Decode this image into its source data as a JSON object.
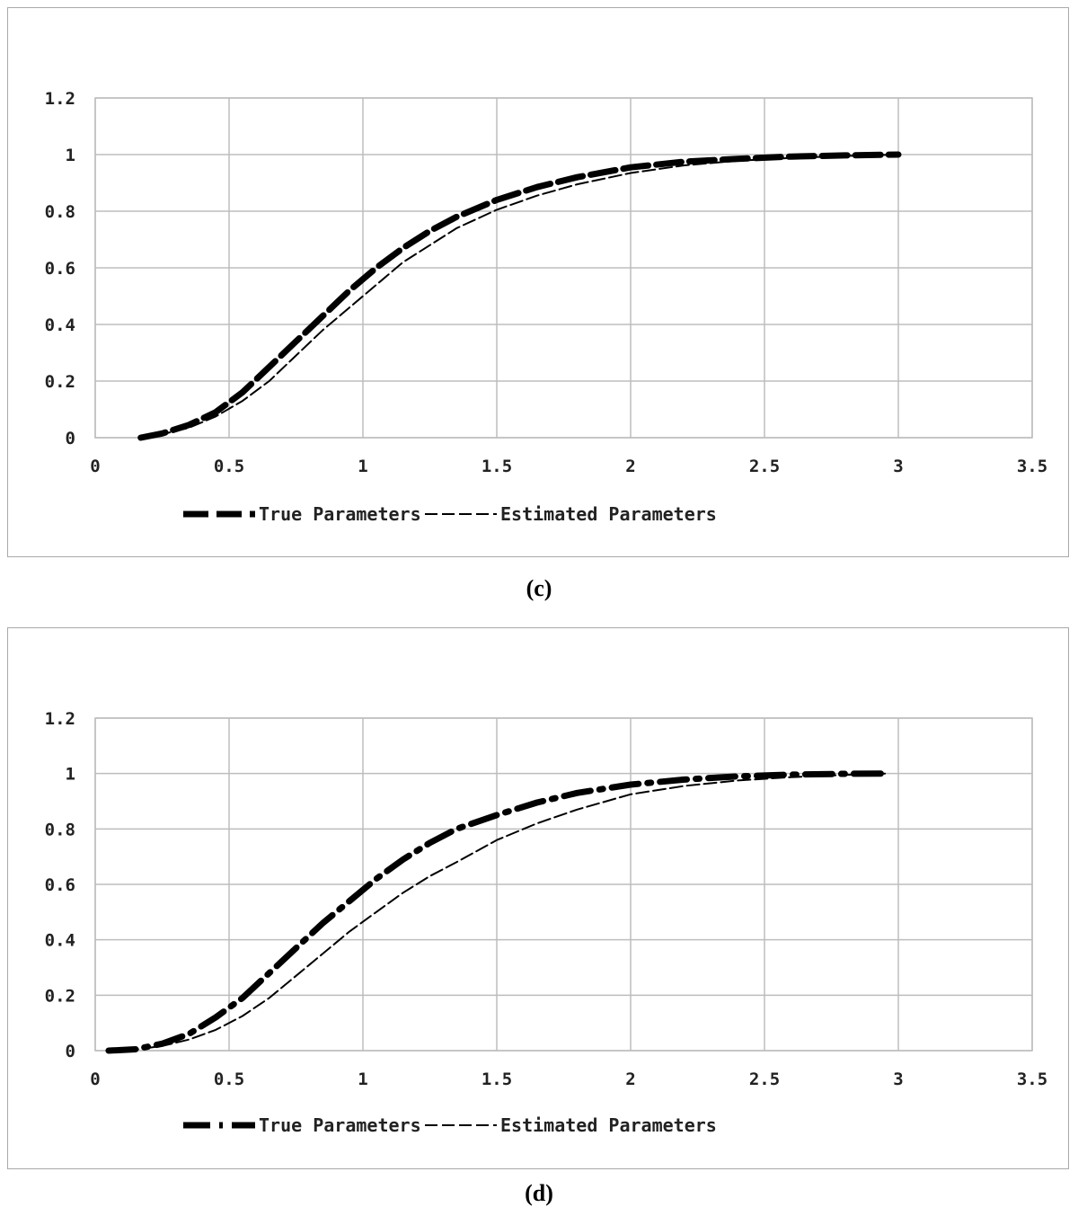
{
  "chart_data": [
    {
      "panel": "(c)",
      "type": "line",
      "title": "",
      "xlabel": "",
      "ylabel": "",
      "xlim": [
        0,
        3.5
      ],
      "ylim": [
        0,
        1.2
      ],
      "x_ticks": [
        "0",
        "0.5",
        "1",
        "1.5",
        "2",
        "2.5",
        "3",
        "3.5"
      ],
      "y_ticks": [
        "0",
        "0.2",
        "0.4",
        "0.6",
        "0.8",
        "1",
        "1.2"
      ],
      "grid": true,
      "legend_position": "bottom",
      "series": [
        {
          "name": "True Parameters",
          "style": "thick-dashed",
          "color": "#000000",
          "x": [
            0.17,
            0.25,
            0.35,
            0.45,
            0.55,
            0.65,
            0.75,
            0.85,
            0.95,
            1.05,
            1.15,
            1.25,
            1.35,
            1.5,
            1.65,
            1.8,
            2.0,
            2.2,
            2.4,
            2.6,
            2.8,
            3.0
          ],
          "y": [
            0.0,
            0.015,
            0.045,
            0.09,
            0.16,
            0.25,
            0.34,
            0.43,
            0.52,
            0.6,
            0.67,
            0.73,
            0.78,
            0.84,
            0.885,
            0.92,
            0.955,
            0.975,
            0.985,
            0.993,
            0.997,
            1.0
          ]
        },
        {
          "name": "Estimated Parameters",
          "style": "thin-dashed",
          "color": "#000000",
          "x": [
            0.17,
            0.25,
            0.35,
            0.45,
            0.55,
            0.65,
            0.75,
            0.85,
            0.95,
            1.05,
            1.15,
            1.25,
            1.35,
            1.5,
            1.65,
            1.8,
            2.0,
            2.2,
            2.4,
            2.6,
            2.8,
            3.0
          ],
          "y": [
            0.0,
            0.012,
            0.035,
            0.075,
            0.13,
            0.2,
            0.29,
            0.38,
            0.46,
            0.54,
            0.62,
            0.68,
            0.74,
            0.805,
            0.855,
            0.895,
            0.935,
            0.962,
            0.978,
            0.988,
            0.995,
            1.0
          ]
        }
      ]
    },
    {
      "panel": "(d)",
      "type": "line",
      "title": "",
      "xlabel": "",
      "ylabel": "",
      "xlim": [
        0,
        3.5
      ],
      "ylim": [
        0,
        1.2
      ],
      "x_ticks": [
        "0",
        "0.5",
        "1",
        "1.5",
        "2",
        "2.5",
        "3",
        "3.5"
      ],
      "y_ticks": [
        "0",
        "0.2",
        "0.4",
        "0.6",
        "0.8",
        "1",
        "1.2"
      ],
      "grid": true,
      "legend_position": "bottom",
      "series": [
        {
          "name": "True Parameters",
          "style": "thick-dash-dot",
          "color": "#000000",
          "x": [
            0.05,
            0.15,
            0.25,
            0.35,
            0.45,
            0.55,
            0.65,
            0.75,
            0.85,
            0.95,
            1.05,
            1.15,
            1.25,
            1.35,
            1.5,
            1.65,
            1.8,
            2.0,
            2.2,
            2.4,
            2.6,
            2.8,
            2.95
          ],
          "y": [
            0.0,
            0.005,
            0.025,
            0.06,
            0.12,
            0.19,
            0.28,
            0.37,
            0.46,
            0.54,
            0.62,
            0.69,
            0.75,
            0.8,
            0.85,
            0.895,
            0.93,
            0.96,
            0.978,
            0.99,
            0.996,
            0.999,
            1.0
          ]
        },
        {
          "name": "Estimated Parameters",
          "style": "thin-dashed",
          "color": "#000000",
          "x": [
            0.05,
            0.15,
            0.25,
            0.35,
            0.45,
            0.55,
            0.65,
            0.75,
            0.85,
            0.95,
            1.05,
            1.15,
            1.25,
            1.35,
            1.5,
            1.65,
            1.8,
            2.0,
            2.2,
            2.4,
            2.6,
            2.8,
            2.95
          ],
          "y": [
            0.0,
            0.004,
            0.017,
            0.04,
            0.075,
            0.125,
            0.19,
            0.27,
            0.35,
            0.43,
            0.5,
            0.57,
            0.63,
            0.68,
            0.76,
            0.82,
            0.87,
            0.925,
            0.955,
            0.975,
            0.987,
            0.995,
            1.0
          ]
        }
      ]
    }
  ],
  "captions": {
    "c": "(c)",
    "d": "(d)"
  }
}
